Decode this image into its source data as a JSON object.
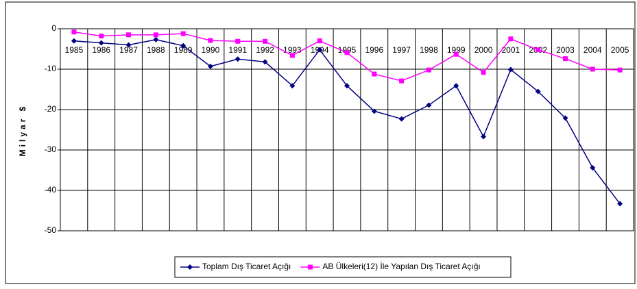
{
  "chart_data": {
    "type": "line",
    "y_label": "Milyar $",
    "categories": [
      "1985",
      "1986",
      "1987",
      "1988",
      "1989",
      "1990",
      "1991",
      "1992",
      "1993",
      "1994",
      "1995",
      "1996",
      "1997",
      "1998",
      "1999",
      "2000",
      "2001",
      "2002",
      "2003",
      "2004",
      "2005"
    ],
    "series": [
      {
        "name": "Toplam Dış Ticaret Açığı",
        "color": "#000080",
        "marker": "diamond",
        "values": [
          -3.0,
          -3.5,
          -4.0,
          -2.7,
          -4.2,
          -9.3,
          -7.5,
          -8.2,
          -14.1,
          -5.2,
          -14.1,
          -20.4,
          -22.3,
          -18.9,
          -14.1,
          -26.7,
          -10.1,
          -15.5,
          -22.1,
          -34.4,
          -43.3
        ]
      },
      {
        "name": "AB Ülkeleri(12) İle Yapılan Dış Ticaret Açığı",
        "color": "#ff00ff",
        "marker": "square",
        "values": [
          -0.8,
          -1.8,
          -1.5,
          -1.5,
          -1.2,
          -2.9,
          -3.1,
          -3.1,
          -6.6,
          -3.0,
          -5.9,
          -11.2,
          -12.9,
          -10.2,
          -6.3,
          -10.8,
          -2.5,
          -5.2,
          -7.4,
          -10.0,
          -10.2
        ]
      }
    ],
    "ylim": [
      -50,
      0
    ],
    "yticks": [
      0,
      -10,
      -20,
      -30,
      -40,
      -50
    ],
    "grid": true,
    "legend": "bottom"
  }
}
